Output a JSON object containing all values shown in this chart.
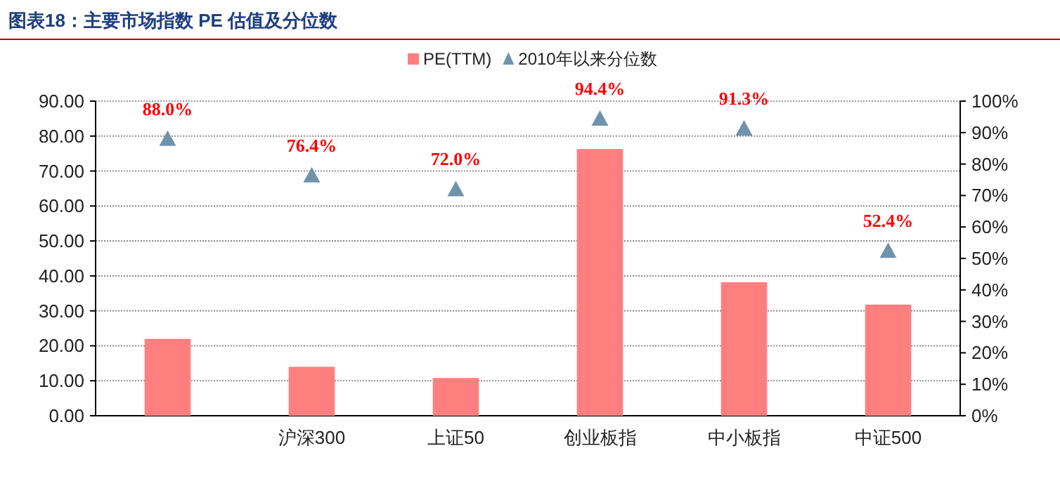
{
  "chart_data": {
    "type": "bar",
    "title": "图表18：主要市场指数 PE 估值及分位数",
    "categories": [
      null,
      "沪深300",
      "上证50",
      "创业板指",
      "中小板指",
      "中证500"
    ],
    "series": [
      {
        "name": "PE(TTM)",
        "color": "#ff7f7f",
        "values": [
          22.0,
          14.0,
          10.8,
          76.3,
          38.2,
          31.8
        ]
      },
      {
        "name": "2010年以来分位数",
        "type": "scatter",
        "axis": "y2",
        "color": "#6f93ad",
        "marker": "triangle",
        "values": [
          88.0,
          76.4,
          72.0,
          94.4,
          91.3,
          52.4
        ],
        "value_labels": [
          "88.0%",
          "76.4%",
          "72.0%",
          "94.4%",
          "91.3%",
          "52.4%"
        ]
      }
    ],
    "ylim": [
      0,
      90
    ],
    "yticks": [
      {
        "value": 0,
        "label": "0.00"
      },
      {
        "value": 10,
        "label": "10.00"
      },
      {
        "value": 20,
        "label": "20.00"
      },
      {
        "value": 30,
        "label": "30.00"
      },
      {
        "value": 40,
        "label": "40.00"
      },
      {
        "value": 50,
        "label": "50.00"
      },
      {
        "value": 60,
        "label": "60.00"
      },
      {
        "value": 70,
        "label": "70.00"
      },
      {
        "value": 80,
        "label": "80.00"
      },
      {
        "value": 90,
        "label": "90.00"
      }
    ],
    "y2lim": [
      0,
      100
    ],
    "y2ticks": [
      {
        "value": 0,
        "label": "0%"
      },
      {
        "value": 10,
        "label": "10%"
      },
      {
        "value": 20,
        "label": "20%"
      },
      {
        "value": 30,
        "label": "30%"
      },
      {
        "value": 40,
        "label": "40%"
      },
      {
        "value": 50,
        "label": "50%"
      },
      {
        "value": 60,
        "label": "60%"
      },
      {
        "value": 70,
        "label": "70%"
      },
      {
        "value": 80,
        "label": "80%"
      },
      {
        "value": 90,
        "label": "90%"
      },
      {
        "value": 100,
        "label": "100%"
      }
    ],
    "grid": "y",
    "legend": "top"
  }
}
